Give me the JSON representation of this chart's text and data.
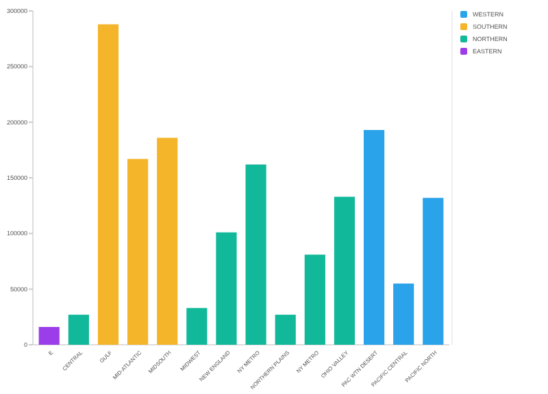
{
  "chart_data": {
    "type": "bar",
    "categories": [
      "E",
      "CENTRAL",
      "GULF",
      "MID-ATLANTIC",
      "MIDSOUTH",
      "MIDWEST",
      "NEW ENGLAND",
      "NY METRO",
      "NORTHERN PLAINS",
      "NY METRO",
      "OHIO VALLEY",
      "PAC WTN DESERT",
      "PACIFIC CENTRAL",
      "PACIFIC NORTH"
    ],
    "series": [
      {
        "name": "WESTERN",
        "color": "#2aa3ea",
        "values": [
          null,
          null,
          null,
          null,
          null,
          null,
          null,
          null,
          null,
          null,
          null,
          193000,
          55000,
          132000
        ]
      },
      {
        "name": "SOUTHERN",
        "color": "#f5b52a",
        "values": [
          null,
          null,
          288000,
          167000,
          186000,
          null,
          null,
          null,
          null,
          null,
          null,
          null,
          null,
          null
        ]
      },
      {
        "name": "NORTHERN",
        "color": "#12b89a",
        "values": [
          null,
          27000,
          null,
          null,
          null,
          33000,
          101000,
          162000,
          27000,
          81000,
          133000,
          null,
          null,
          null
        ]
      },
      {
        "name": "EASTERN",
        "color": "#9b3de8",
        "values": [
          16000,
          null,
          null,
          null,
          null,
          null,
          null,
          null,
          null,
          null,
          null,
          null,
          null,
          null
        ]
      }
    ],
    "ylim": [
      0,
      300000
    ],
    "yticks": [
      0,
      50000,
      100000,
      150000,
      200000,
      250000,
      300000
    ],
    "grid": false,
    "legend": "top right"
  }
}
